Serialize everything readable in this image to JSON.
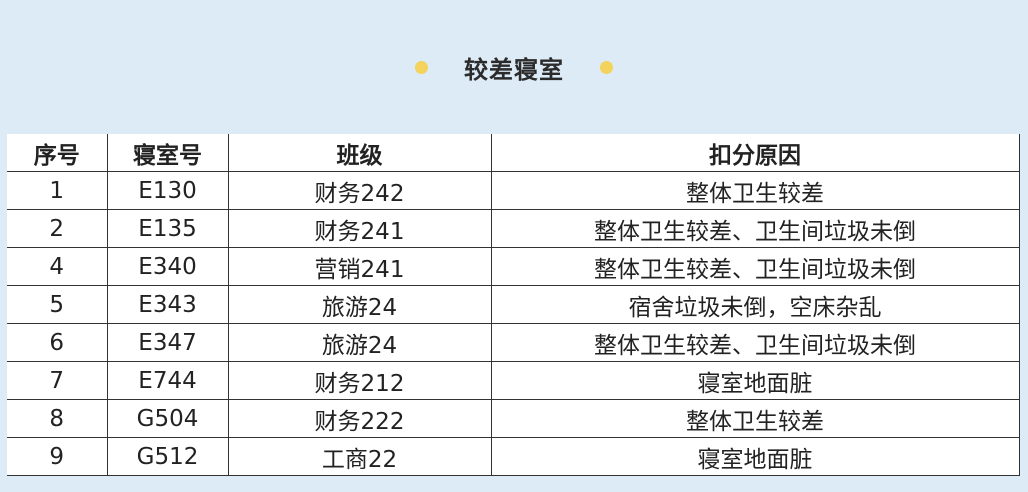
{
  "title": "较差寝室",
  "accent_color": "#f3d35c",
  "background_color": "#dcebf6",
  "table": {
    "headers": [
      "序号",
      "寝室号",
      "班级",
      "扣分原因"
    ],
    "rows": [
      [
        "1",
        "E130",
        "财务242",
        "整体卫生较差"
      ],
      [
        "2",
        "E135",
        "财务241",
        "整体卫生较差、卫生间垃圾未倒"
      ],
      [
        "4",
        "E340",
        "营销241",
        "整体卫生较差、卫生间垃圾未倒"
      ],
      [
        "5",
        "E343",
        "旅游24",
        "宿舍垃圾未倒，空床杂乱"
      ],
      [
        "6",
        "E347",
        "旅游24",
        "整体卫生较差、卫生间垃圾未倒"
      ],
      [
        "7",
        "E744",
        "财务212",
        "寝室地面脏"
      ],
      [
        "8",
        "G504",
        "财务222",
        "整体卫生较差"
      ],
      [
        "9",
        "G512",
        "工商22",
        "寝室地面脏"
      ]
    ]
  }
}
